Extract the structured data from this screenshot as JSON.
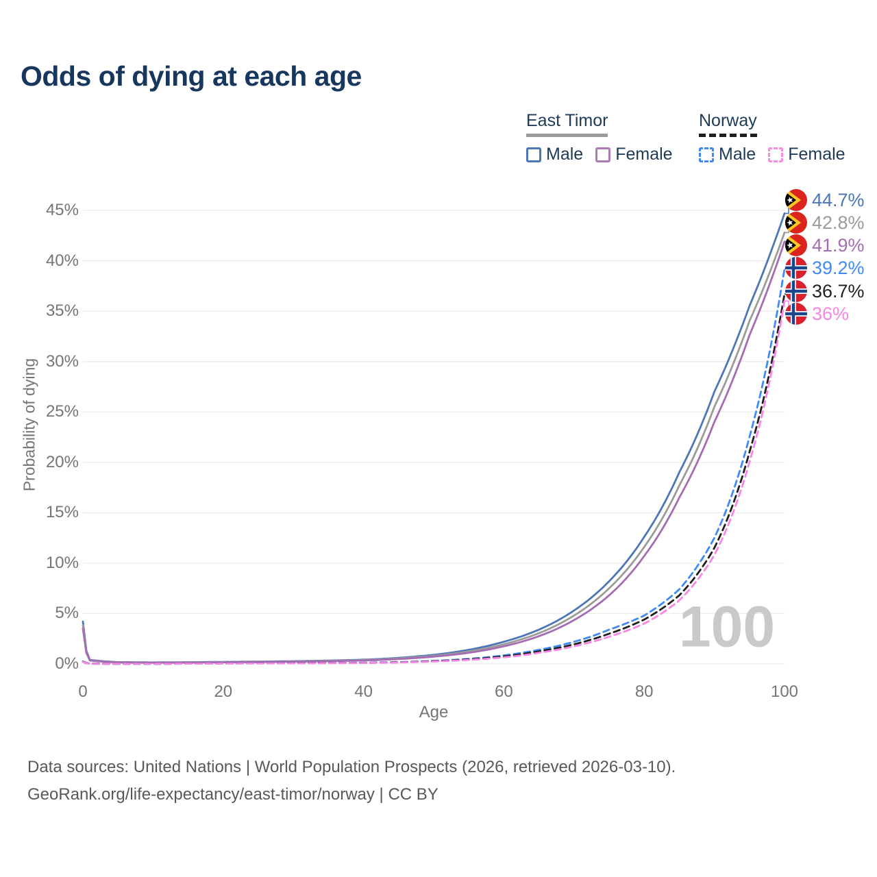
{
  "title": "Odds of dying at each age",
  "watermark_age_counter": "100",
  "colors": {
    "title": "#17375e",
    "axis_text": "#757575",
    "grid": "#ececec",
    "watermark": "#c9c9c9",
    "footer_text": "#56585c",
    "east_timor_male": "#4b76b8",
    "east_timor_both": "#9b9b9b",
    "east_timor_female": "#a56cb4",
    "norway_male": "#3f8af5",
    "norway_both": "#1f1f1f",
    "norway_female": "#f985e5"
  },
  "legend": {
    "groups": [
      {
        "title": "East Timor",
        "line_style": "solid",
        "items": [
          {
            "label": "Male",
            "color": "#4b76b8"
          },
          {
            "label": "Female",
            "color": "#b07ab8"
          }
        ]
      },
      {
        "title": "Norway",
        "line_style": "dashed",
        "items": [
          {
            "label": "Male",
            "color": "#3f8af5"
          },
          {
            "label": "Female",
            "color": "#fb8ae0"
          }
        ]
      }
    ]
  },
  "chart_data": {
    "type": "line",
    "title": "Odds of dying at each age",
    "xlabel": "Age",
    "ylabel": "Probability of dying",
    "xlim": [
      0,
      100
    ],
    "ylim": [
      0,
      46
    ],
    "grid": "horizontal",
    "legend_position": "top-right",
    "x_ticks": [
      0,
      20,
      40,
      60,
      80,
      100
    ],
    "y_ticks": [
      0,
      5,
      10,
      15,
      20,
      25,
      30,
      35,
      40,
      45
    ],
    "y_tick_labels": [
      "0%",
      "5%",
      "10%",
      "15%",
      "20%",
      "25%",
      "30%",
      "35%",
      "40%",
      "45%"
    ],
    "x": [
      0,
      1,
      5,
      10,
      15,
      20,
      25,
      30,
      35,
      40,
      45,
      50,
      55,
      60,
      65,
      70,
      75,
      80,
      85,
      90,
      95,
      100
    ],
    "series": [
      {
        "name": "East Timor Male",
        "country": "East Timor",
        "sex": "Male",
        "line_style": "solid",
        "color": "#4b76b8",
        "flag": "east-timor",
        "end_label": "44.7%",
        "final_value": 44.7,
        "values": [
          4.2,
          0.4,
          0.18,
          0.15,
          0.17,
          0.2,
          0.23,
          0.27,
          0.33,
          0.42,
          0.6,
          0.9,
          1.4,
          2.2,
          3.4,
          5.3,
          8.2,
          12.6,
          19.0,
          27.0,
          35.5,
          44.7
        ]
      },
      {
        "name": "East Timor Both sexes",
        "country": "East Timor",
        "sex": "Both",
        "line_style": "solid",
        "color": "#9b9b9b",
        "flag": "east-timor",
        "end_label": "42.8%",
        "final_value": 42.8,
        "values": [
          3.85,
          0.37,
          0.16,
          0.13,
          0.15,
          0.18,
          0.21,
          0.24,
          0.3,
          0.38,
          0.54,
          0.8,
          1.25,
          1.95,
          3.05,
          4.8,
          7.5,
          11.6,
          17.7,
          25.5,
          34.0,
          42.8
        ]
      },
      {
        "name": "East Timor Female",
        "country": "East Timor",
        "sex": "Female",
        "line_style": "solid",
        "color": "#a56cb4",
        "flag": "east-timor",
        "end_label": "41.9%",
        "final_value": 41.9,
        "values": [
          3.5,
          0.34,
          0.14,
          0.12,
          0.13,
          0.16,
          0.19,
          0.22,
          0.27,
          0.34,
          0.48,
          0.72,
          1.1,
          1.75,
          2.75,
          4.35,
          6.8,
          10.7,
          16.5,
          24.0,
          32.6,
          41.9
        ]
      },
      {
        "name": "Norway Male",
        "country": "Norway",
        "sex": "Male",
        "line_style": "dashed",
        "color": "#3f8af5",
        "flag": "norway",
        "end_label": "39.2%",
        "final_value": 39.2,
        "values": [
          0.25,
          0.03,
          0.01,
          0.012,
          0.04,
          0.06,
          0.08,
          0.09,
          0.1,
          0.12,
          0.18,
          0.3,
          0.5,
          0.85,
          1.4,
          2.2,
          3.4,
          4.8,
          7.4,
          12.5,
          22.5,
          39.2
        ]
      },
      {
        "name": "Norway Both sexes",
        "country": "Norway",
        "sex": "Both",
        "line_style": "dashed",
        "color": "#1f1f1f",
        "flag": "norway",
        "end_label": "36.7%",
        "final_value": 36.7,
        "values": [
          0.22,
          0.025,
          0.01,
          0.011,
          0.03,
          0.05,
          0.065,
          0.075,
          0.09,
          0.11,
          0.16,
          0.27,
          0.45,
          0.75,
          1.25,
          1.95,
          3.0,
          4.4,
          6.8,
          11.5,
          21.0,
          36.7
        ]
      },
      {
        "name": "Norway Female",
        "country": "Norway",
        "sex": "Female",
        "line_style": "dashed",
        "color": "#f985e5",
        "flag": "norway",
        "end_label": "36%",
        "final_value": 36.0,
        "values": [
          0.2,
          0.02,
          0.01,
          0.01,
          0.025,
          0.04,
          0.05,
          0.06,
          0.075,
          0.1,
          0.14,
          0.24,
          0.4,
          0.65,
          1.1,
          1.75,
          2.7,
          4.0,
          6.3,
          10.8,
          20.0,
          36.0
        ]
      }
    ]
  },
  "footer": {
    "line1": "Data sources: United Nations | World Population Prospects (2026, retrieved 2026-03-10).",
    "line2": "GeoRank.org/life-expectancy/east-timor/norway | CC BY"
  }
}
